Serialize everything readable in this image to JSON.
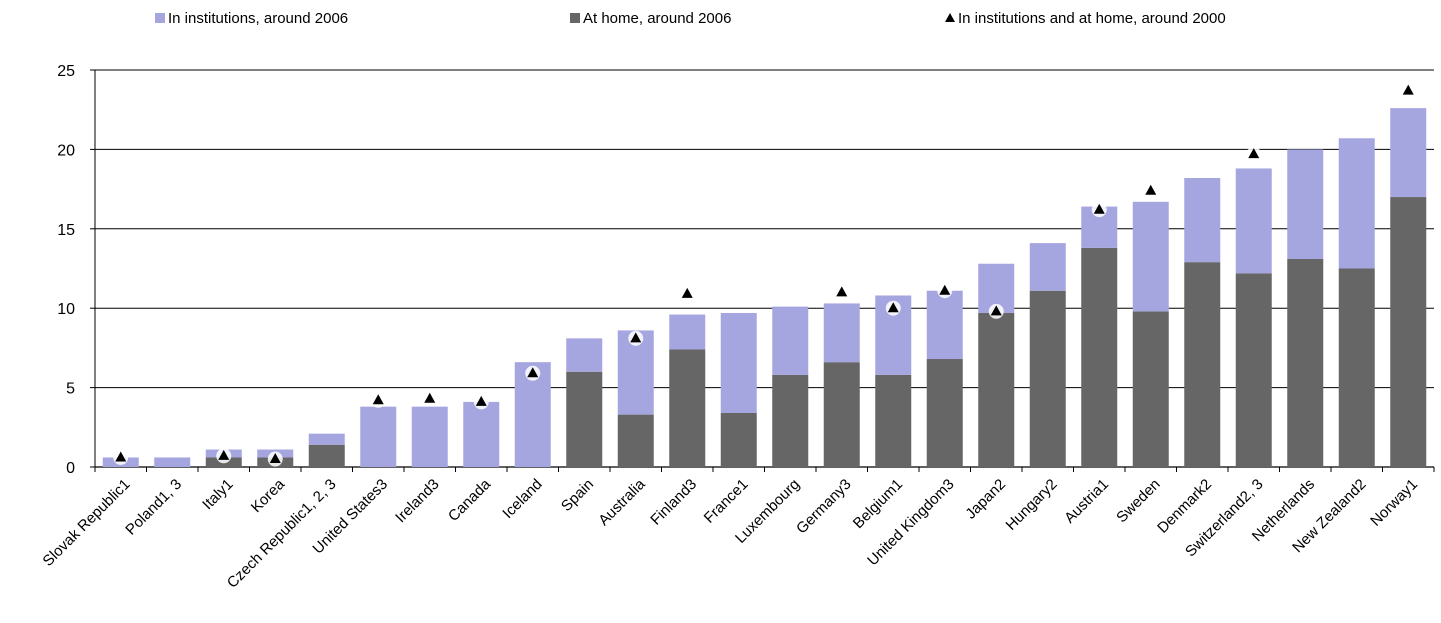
{
  "chart_data": {
    "type": "bar",
    "stacked": true,
    "title": "",
    "xlabel": "",
    "ylabel": "",
    "ylim": [
      0,
      25
    ],
    "yticks": [
      0,
      5,
      10,
      15,
      20,
      25
    ],
    "grid": true,
    "legend_position": "top",
    "categories": [
      "Slovak Republic1",
      "Poland1, 3",
      "Italy1",
      "Korea",
      "Czech Republic1, 2, 3",
      "United States3",
      "Ireland3",
      "Canada",
      "Iceland",
      "Spain",
      "Australia",
      "Finland3",
      "France1",
      "Luxembourg",
      "Germany3",
      "Belgium1",
      "United Kingdom3",
      "Japan2",
      "Hungary2",
      "Austria1",
      "Sweden",
      "Denmark2",
      "Switzerland2, 3",
      "Netherlands",
      "New Zealand2",
      "Norway1"
    ],
    "series": [
      {
        "name": "At home, around 2006",
        "kind": "bar",
        "color": "#666666",
        "values": [
          0,
          0,
          0.6,
          0.6,
          1.4,
          0,
          0,
          0,
          0,
          6.0,
          3.3,
          7.4,
          3.4,
          5.8,
          6.6,
          5.8,
          6.8,
          9.7,
          11.1,
          13.8,
          9.8,
          12.9,
          12.2,
          13.1,
          12.5,
          17.0
        ]
      },
      {
        "name": "In institutions, around 2006",
        "kind": "bar",
        "color": "#a5a5e0",
        "values": [
          0.6,
          0.6,
          0.5,
          0.5,
          0.7,
          3.8,
          3.8,
          4.1,
          6.6,
          2.1,
          5.3,
          2.2,
          6.3,
          4.3,
          3.7,
          5.0,
          4.3,
          3.1,
          3.0,
          2.6,
          6.9,
          5.3,
          6.6,
          6.9,
          8.2,
          5.6
        ]
      },
      {
        "name": "In institutions and at home, around 2000",
        "kind": "marker",
        "color": "#000000",
        "values": [
          0.6,
          null,
          0.7,
          0.5,
          null,
          4.2,
          4.3,
          4.1,
          5.9,
          null,
          8.1,
          10.9,
          null,
          null,
          11.0,
          10.0,
          11.1,
          9.8,
          null,
          16.2,
          17.4,
          null,
          19.7,
          null,
          null,
          23.7
        ]
      }
    ]
  },
  "legend": {
    "inst_label": "In institutions, around 2006",
    "home_label": "At home, around 2006",
    "marker_label": "In institutions and at home, around 2000"
  }
}
